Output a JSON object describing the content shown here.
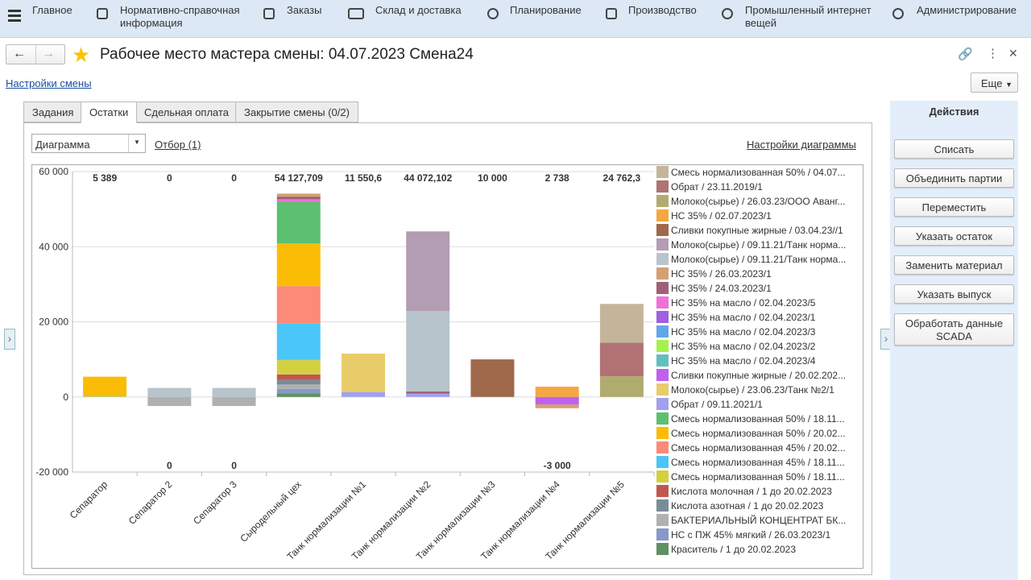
{
  "menu": [
    "Главное",
    "Нормативно-справочная информация",
    "Заказы",
    "Склад и доставка",
    "Планирование",
    "Производство",
    "Промышленный интернет вещей",
    "Администрирование"
  ],
  "header": {
    "title": "Рабочее место мастера смены: 04.07.2023 Смена24",
    "settings_link": "Настройки смены",
    "more_button": "Еще"
  },
  "tabs": [
    "Задания",
    "Остатки",
    "Сдельная оплата",
    "Закрытие смены (0/2)"
  ],
  "toolbar": {
    "view_select": "Диаграмма",
    "filter_link": "Отбор (1)",
    "chart_settings_link": "Настройки диаграммы"
  },
  "actions": {
    "title": "Действия",
    "buttons": [
      "Списать",
      "Объединить партии",
      "Переместить",
      "Указать остаток",
      "Заменить материал",
      "Указать выпуск",
      "Обработать данные SCADA"
    ]
  },
  "chart_data": {
    "type": "stacked_bar",
    "categories": [
      "Сепаратор",
      "Сепаратор 2",
      "Сепаратор 3",
      "Сыродельный цех",
      "Танк нормализации №1",
      "Танк нормализации №2",
      "Танк нормализации №3",
      "Танк нормализации №4",
      "Танк нормализации №5"
    ],
    "ylim": [
      -20000,
      60000
    ],
    "yticks": [
      {
        "value": -20000,
        "label": "-20 000"
      },
      0,
      {
        "value": 20000,
        "label": "20 000"
      },
      {
        "value": 40000,
        "label": "40 000"
      },
      {
        "value": 60000,
        "label": "60 000"
      }
    ],
    "grid": true,
    "legend": "right",
    "totals": {
      "values": [
        5389,
        0,
        0,
        54127.709,
        11550.6,
        44072.102,
        10000,
        2738,
        24762.3
      ],
      "value_labels": [
        "5 389",
        "0",
        "0",
        "54 127,709",
        "11 550,6",
        "44 072,102",
        "10 000",
        "2 738",
        "24 762,3"
      ]
    },
    "negative_totals": {
      "values": [
        null,
        0,
        0,
        null,
        null,
        null,
        null,
        -3000,
        null
      ],
      "value_labels": [
        null,
        "0",
        "0",
        null,
        null,
        null,
        null,
        "-3 000",
        null
      ]
    },
    "series": [
      {
        "name": "Смесь нормализованная 50% / 04.07...",
        "color": "#c4b59a",
        "values": [
          null,
          null,
          null,
          null,
          null,
          null,
          null,
          null,
          10300
        ]
      },
      {
        "name": "Обрат / 23.11.2019/1",
        "color": "#b07272",
        "values": [
          null,
          null,
          null,
          null,
          null,
          null,
          null,
          null,
          9000
        ]
      },
      {
        "name": "Молоко(сырье) / 26.03.23/ООО Аванг...",
        "color": "#b0ac70",
        "values": [
          null,
          null,
          null,
          null,
          null,
          null,
          null,
          null,
          5462.3
        ]
      },
      {
        "name": "НС 35% / 02.07.2023/1",
        "color": "#f5a742",
        "values": [
          null,
          null,
          null,
          null,
          null,
          null,
          null,
          2738,
          null
        ]
      },
      {
        "name": "Сливки покупные жирные / 03.04.23//1",
        "color": "#a0694b",
        "values": [
          null,
          null,
          null,
          null,
          null,
          null,
          10000,
          null,
          null
        ]
      },
      {
        "name": "Молоко(сырье) / 09.11.21/Танк норма...",
        "color": "#b39db2",
        "values": [
          null,
          null,
          null,
          null,
          null,
          21200,
          null,
          null,
          null
        ]
      },
      {
        "name": "Молоко(сырье) / 09.11.21/Танк норма...",
        "color": "#b8c4cc",
        "values": [
          null,
          2400,
          2400,
          null,
          null,
          21400,
          null,
          null,
          null
        ]
      },
      {
        "name": "НС 35% / 26.03.2023/1",
        "color": "#d4a070",
        "values": [
          null,
          null,
          null,
          800,
          null,
          null,
          null,
          -1000,
          null
        ]
      },
      {
        "name": "НС 35% / 24.03.2023/1",
        "color": "#a0607a",
        "values": [
          null,
          null,
          null,
          700,
          null,
          600,
          null,
          null,
          null
        ]
      },
      {
        "name": "НС 35% на масло / 02.04.2023/5",
        "color": "#f070d8",
        "values": [
          null,
          null,
          null,
          677.709,
          null,
          null,
          null,
          null,
          null
        ]
      },
      {
        "name": "НС 35% на масло / 02.04.2023/1",
        "color": "#a060e0",
        "values": [
          null,
          null,
          null,
          null,
          null,
          null,
          null,
          null,
          null
        ]
      },
      {
        "name": "НС 35% на масло / 02.04.2023/3",
        "color": "#60a8e8",
        "values": [
          null,
          null,
          null,
          null,
          null,
          null,
          null,
          null,
          null
        ]
      },
      {
        "name": "НС 35% на масло / 02.04.2023/2",
        "color": "#a8f050",
        "values": [
          null,
          null,
          null,
          null,
          null,
          null,
          null,
          null,
          null
        ]
      },
      {
        "name": "НС 35% на масло / 02.04.2023/4",
        "color": "#60c0c0",
        "values": [
          null,
          null,
          null,
          null,
          null,
          null,
          null,
          null,
          null
        ]
      },
      {
        "name": "Сливки покупные жирные / 20.02.202...",
        "color": "#c060f0",
        "values": [
          null,
          null,
          null,
          null,
          null,
          null,
          null,
          -2000,
          null
        ]
      },
      {
        "name": "Молоко(сырье) / 23.06.23/Танк №2/1",
        "color": "#e8cc6a",
        "values": [
          null,
          null,
          null,
          null,
          10250.6,
          null,
          null,
          null,
          null
        ]
      },
      {
        "name": "Обрат / 09.11.2021/1",
        "color": "#a0a0f0",
        "values": [
          null,
          null,
          null,
          null,
          1300,
          872.102,
          null,
          null,
          null
        ]
      },
      {
        "name": "Смесь нормализованная 50% / 18.11...",
        "color": "#5cc070",
        "values": [
          null,
          null,
          null,
          11100,
          null,
          null,
          null,
          null,
          null
        ]
      },
      {
        "name": "Смесь нормализованная 50% / 20.02...",
        "color": "#fbbc05",
        "values": [
          5289,
          null,
          null,
          11350,
          null,
          null,
          null,
          null,
          null
        ]
      },
      {
        "name": "Смесь нормализованная 45% / 20.02...",
        "color": "#fb8a78",
        "values": [
          null,
          null,
          null,
          10000,
          null,
          null,
          null,
          null,
          null
        ]
      },
      {
        "name": "Смесь нормализованная 45% / 18.11...",
        "color": "#4ac6f8",
        "values": [
          100,
          null,
          null,
          9650,
          null,
          null,
          null,
          null,
          null
        ]
      },
      {
        "name": "Смесь нормализованная 50% / 18.11...",
        "color": "#d4d040",
        "values": [
          null,
          null,
          null,
          3850,
          null,
          null,
          null,
          null,
          null
        ]
      },
      {
        "name": "Кислота молочная / 1 до 20.02.2023",
        "color": "#c05850",
        "values": [
          null,
          null,
          null,
          1500,
          null,
          null,
          null,
          null,
          null
        ]
      },
      {
        "name": "Кислота азотная / 1 до 20.02.2023",
        "color": "#7a8c98",
        "values": [
          null,
          null,
          null,
          1200,
          null,
          null,
          null,
          null,
          null
        ]
      },
      {
        "name": "БАКТЕРИАЛЬНЫЙ КОНЦЕНТРАТ БК...",
        "color": "#b0b0b0",
        "values": [
          null,
          -2400,
          -2400,
          1200,
          null,
          null,
          null,
          null,
          null
        ]
      },
      {
        "name": "НС с ПЖ 45% мягкий / 26.03.2023/1",
        "color": "#8898c8",
        "values": [
          null,
          null,
          null,
          1200,
          null,
          null,
          null,
          null,
          null
        ]
      },
      {
        "name": "Краситель / 1 до 20.02.2023",
        "color": "#609060",
        "values": [
          null,
          null,
          null,
          900,
          null,
          null,
          null,
          null,
          null
        ]
      }
    ]
  }
}
